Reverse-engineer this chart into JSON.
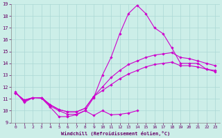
{
  "xlabel": "Windchill (Refroidissement éolien,°C)",
  "bg_color": "#cceee8",
  "grid_color": "#aad8d4",
  "line_color": "#cc00cc",
  "xlim": [
    -0.5,
    23.5
  ],
  "ylim": [
    9,
    19
  ],
  "xticks": [
    0,
    1,
    2,
    3,
    4,
    5,
    6,
    7,
    8,
    9,
    10,
    11,
    12,
    13,
    14,
    15,
    16,
    17,
    18,
    19,
    20,
    21,
    22,
    23
  ],
  "yticks": [
    9,
    10,
    11,
    12,
    13,
    14,
    15,
    16,
    17,
    18,
    19
  ],
  "line1_x": [
    0,
    1,
    2,
    3,
    4,
    5,
    6,
    7,
    8,
    9,
    10,
    11,
    12,
    13,
    14,
    15,
    16,
    17,
    18,
    19,
    20,
    21,
    22,
    23
  ],
  "line1_y": [
    11.6,
    10.7,
    11.1,
    11.05,
    10.3,
    9.5,
    9.5,
    9.65,
    10.0,
    9.6,
    10.0,
    9.65,
    9.7,
    9.8,
    10.0,
    null,
    null,
    null,
    null,
    null,
    null,
    null,
    null,
    null
  ],
  "line2_x": [
    0,
    1,
    2,
    3,
    4,
    5,
    6,
    7,
    8,
    9,
    10,
    11,
    12,
    13,
    14,
    15,
    16,
    17,
    18,
    19,
    20,
    21,
    22,
    23
  ],
  "line2_y": [
    11.5,
    10.8,
    11.1,
    11.1,
    10.4,
    10.0,
    9.7,
    9.7,
    10.0,
    11.1,
    13.0,
    14.5,
    16.5,
    18.2,
    18.9,
    18.2,
    17.0,
    16.5,
    15.3,
    14.0,
    14.0,
    14.0,
    13.5,
    13.3
  ],
  "line3_x": [
    0,
    1,
    2,
    3,
    4,
    5,
    6,
    7,
    8,
    9,
    10,
    11,
    12,
    13,
    14,
    15,
    16,
    17,
    18,
    19,
    20,
    21,
    22,
    23
  ],
  "line3_y": [
    11.5,
    10.9,
    11.1,
    11.1,
    10.5,
    10.1,
    9.9,
    9.9,
    10.2,
    11.2,
    12.0,
    12.8,
    13.4,
    13.9,
    14.2,
    14.5,
    14.7,
    14.8,
    14.9,
    14.5,
    14.4,
    14.2,
    14.0,
    13.8
  ],
  "line4_x": [
    0,
    1,
    2,
    3,
    4,
    5,
    6,
    7,
    8,
    9,
    10,
    11,
    12,
    13,
    14,
    15,
    16,
    17,
    18,
    19,
    20,
    21,
    22,
    23
  ],
  "line4_y": [
    11.5,
    10.9,
    11.1,
    11.1,
    10.5,
    10.1,
    9.9,
    9.9,
    10.2,
    11.2,
    11.7,
    12.2,
    12.7,
    13.1,
    13.4,
    13.7,
    13.9,
    14.0,
    14.1,
    13.8,
    13.8,
    13.7,
    13.5,
    13.4
  ]
}
